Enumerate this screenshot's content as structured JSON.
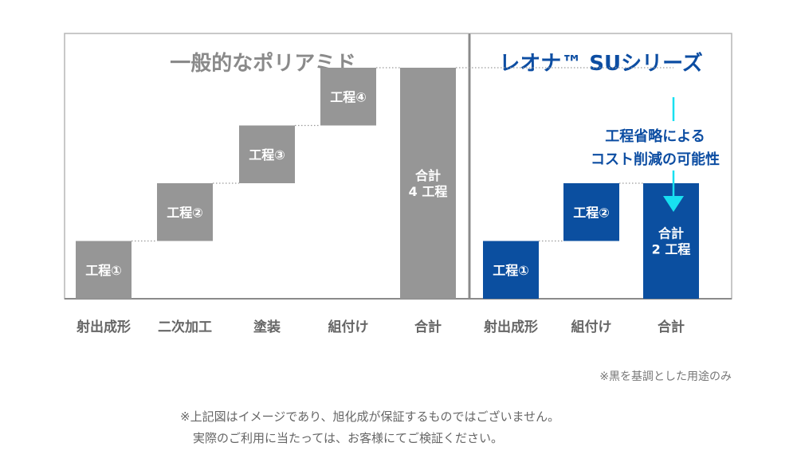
{
  "colors": {
    "gray_bar": "#969696",
    "blue_bar": "#0b4fa0",
    "cyan_arrow": "#18e0f0",
    "title_gray": "#8a8a8a",
    "title_blue": "#0c4da2"
  },
  "chart_data": [
    {
      "type": "bar",
      "title": "一般的なポリアミド",
      "categories": [
        "射出成形",
        "二次加工",
        "塗装",
        "組付け",
        "合計"
      ],
      "values": [
        1,
        1,
        1,
        1,
        4
      ],
      "bar_labels": [
        [
          "工程①"
        ],
        [
          "工程②"
        ],
        [
          "工程③"
        ],
        [
          "工程④"
        ],
        [
          "合計",
          "4 工程"
        ]
      ]
    },
    {
      "type": "bar",
      "title": "レオナ™ SUシリーズ",
      "categories": [
        "射出成形",
        "組付け",
        "合計"
      ],
      "values": [
        1,
        1,
        2
      ],
      "bar_labels": [
        [
          "工程①"
        ],
        [
          "工程②"
        ],
        [
          "合計",
          "2 工程"
        ]
      ],
      "annotation": [
        "工程省略による",
        "コスト削減の可能性"
      ]
    }
  ],
  "notes": {
    "color_note": "※黒を基調とした用途のみ",
    "disclaimer_line1": "※上記図はイメージであり、旭化成が保証するものではございません。",
    "disclaimer_line2": "実際のご利用に当たっては、お客様にてご検証ください。"
  }
}
